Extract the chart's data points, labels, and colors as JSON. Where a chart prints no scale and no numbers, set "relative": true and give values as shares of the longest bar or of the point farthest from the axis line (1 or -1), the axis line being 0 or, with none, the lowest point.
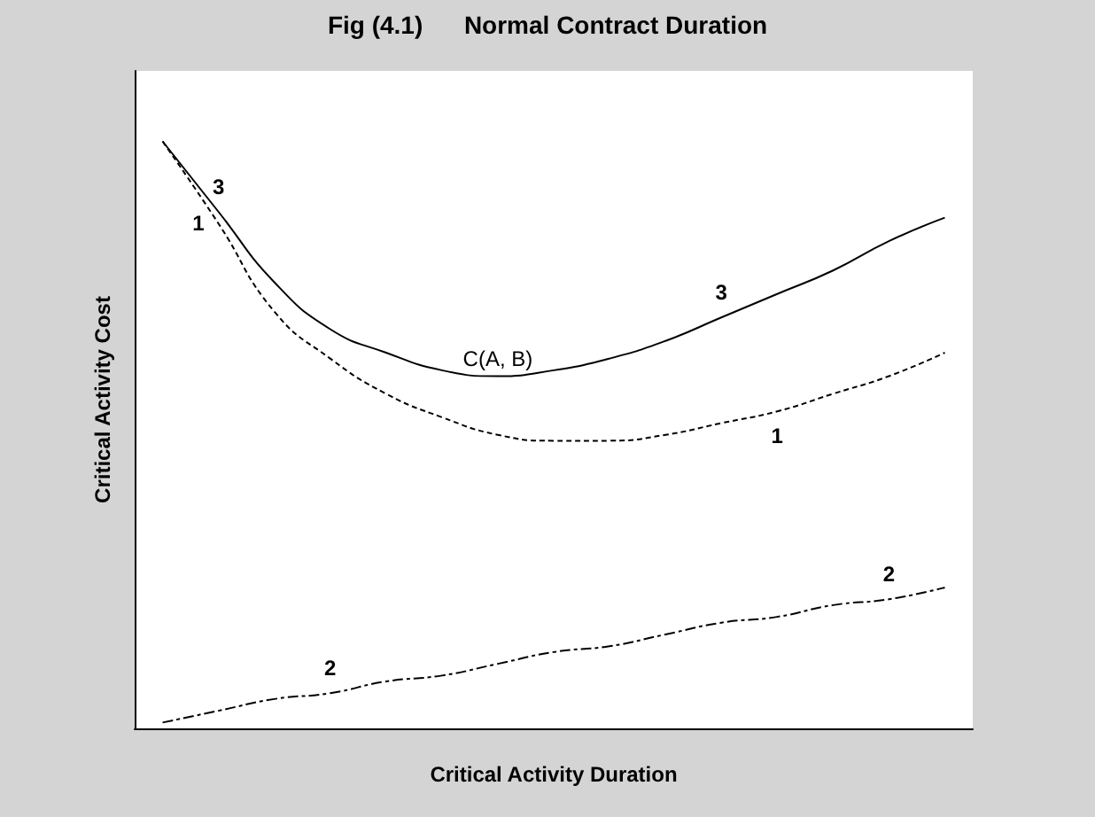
{
  "chart_data": {
    "type": "line",
    "title": "Fig (4.1)      Normal Contract Duration",
    "xlabel": "Critical Activity Duration",
    "ylabel": "Critical Activity Cost",
    "categories": [
      null,
      null,
      null,
      null,
      null,
      null,
      null,
      null,
      null,
      null,
      null,
      null,
      null,
      null,
      null
    ],
    "relative": true,
    "legend": false,
    "marker": "none",
    "grid": false,
    "annotations": [
      "C(A, B)"
    ],
    "series": [
      {
        "name": "3",
        "color": "#000000",
        "line_style": "solid",
        "values": [
          1.0,
          0.88,
          0.76,
          0.68,
          0.64,
          0.61,
          0.6,
          0.61,
          0.63,
          0.66,
          0.7,
          0.74,
          0.78,
          0.83,
          0.87
        ]
      },
      {
        "name": "1",
        "color": "#000000",
        "line_style": "dotted",
        "values": [
          1.0,
          0.86,
          0.71,
          0.63,
          0.57,
          0.53,
          0.5,
          0.49,
          0.49,
          0.5,
          0.52,
          0.54,
          0.57,
          0.6,
          0.64
        ]
      },
      {
        "name": "2",
        "color": "#000000",
        "line_style": "dashed",
        "values": [
          0.01,
          0.03,
          0.05,
          0.06,
          0.08,
          0.09,
          0.11,
          0.13,
          0.14,
          0.16,
          0.18,
          0.19,
          0.21,
          0.22,
          0.24
        ]
      }
    ]
  }
}
